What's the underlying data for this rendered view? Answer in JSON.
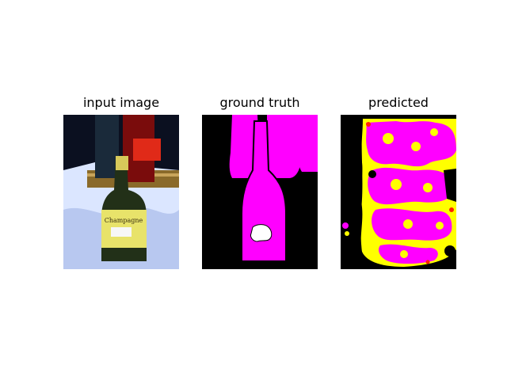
{
  "figure": {
    "panels": [
      {
        "title": "input image"
      },
      {
        "title": "ground truth"
      },
      {
        "title": "predicted"
      }
    ]
  },
  "label_texts": {
    "champagne": "Champagne"
  },
  "colors": {
    "background": "#000000",
    "foreground_class": "#ff00ff",
    "boundary_class": "#ffffff",
    "predicted_alt_class": "#ffff00",
    "predicted_error_class": "#ff2200"
  }
}
